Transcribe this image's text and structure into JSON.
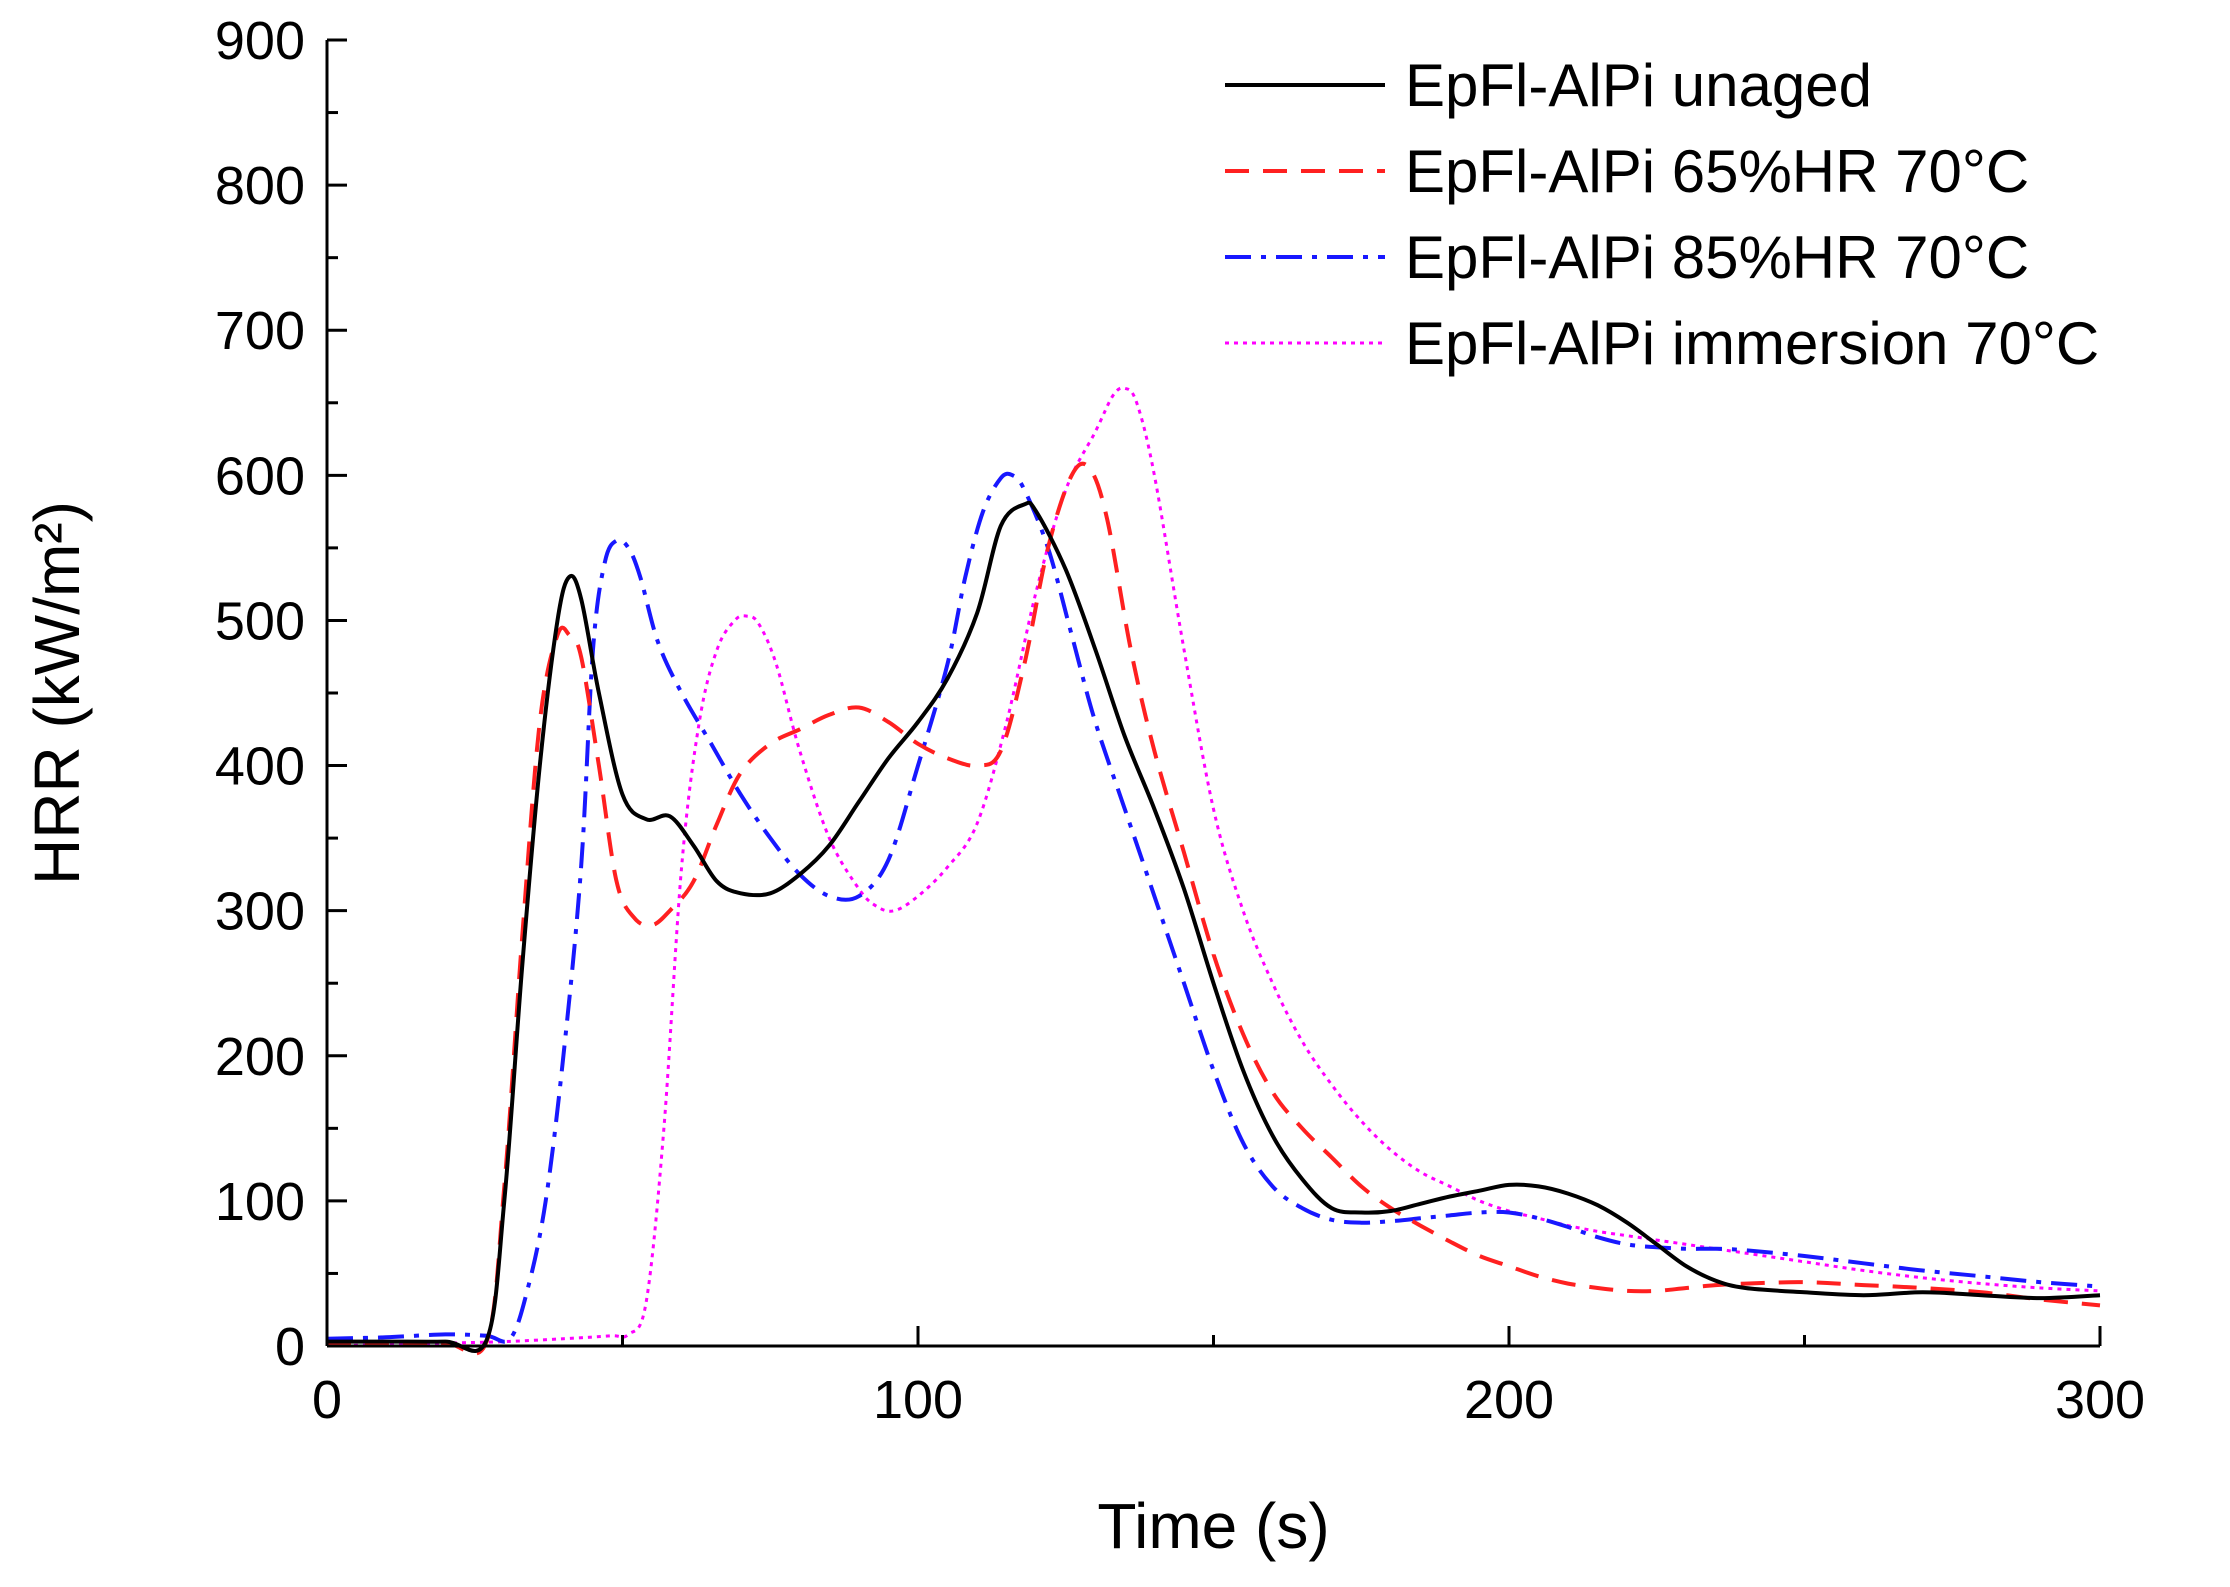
{
  "chart_data": {
    "type": "line",
    "title": "",
    "xlabel": "Time (s)",
    "ylabel": "HRR (kW/m²)",
    "xlim": [
      0,
      300
    ],
    "ylim": [
      0,
      900
    ],
    "x_ticks": [
      0,
      100,
      200,
      300
    ],
    "x_tick_labels": [
      "0",
      "100",
      "200",
      "300"
    ],
    "y_ticks": [
      0,
      100,
      200,
      300,
      400,
      500,
      600,
      700,
      800,
      900
    ],
    "y_tick_labels": [
      "0",
      "100",
      "200",
      "300",
      "400",
      "500",
      "600",
      "700",
      "800",
      "900"
    ],
    "grid": false,
    "legend_position": "top-right",
    "series": [
      {
        "name": "EpFl-AlPi unaged",
        "color": "#000000",
        "style": "solid",
        "x": [
          0,
          10,
          20,
          27,
          30,
          33,
          36,
          39,
          41,
          43,
          46,
          50,
          54,
          58,
          62,
          66,
          70,
          75,
          80,
          85,
          90,
          95,
          100,
          105,
          110,
          114,
          118,
          120,
          125,
          130,
          135,
          140,
          145,
          150,
          155,
          160,
          165,
          170,
          175,
          180,
          185,
          190,
          195,
          200,
          205,
          210,
          215,
          220,
          225,
          230,
          235,
          240,
          250,
          260,
          270,
          280,
          290,
          300
        ],
        "y": [
          3,
          3,
          3,
          4,
          100,
          260,
          400,
          500,
          530,
          515,
          450,
          380,
          363,
          365,
          345,
          320,
          312,
          312,
          325,
          345,
          375,
          405,
          430,
          460,
          505,
          565,
          580,
          575,
          535,
          480,
          420,
          370,
          315,
          250,
          190,
          145,
          115,
          95,
          92,
          93,
          98,
          103,
          107,
          111,
          110,
          105,
          97,
          85,
          70,
          55,
          45,
          40,
          37,
          35,
          37,
          35,
          33,
          35
        ]
      },
      {
        "name": "EpFl-AlPi 65%HR 70°C",
        "color": "#ff2020",
        "style": "dashed",
        "x": [
          0,
          10,
          20,
          27,
          30,
          33,
          36,
          39,
          41,
          43,
          46,
          49,
          52,
          55,
          58,
          62,
          66,
          70,
          75,
          80,
          85,
          90,
          95,
          100,
          105,
          110,
          114,
          118,
          122,
          126,
          129,
          132,
          136,
          140,
          145,
          150,
          155,
          160,
          165,
          170,
          175,
          180,
          185,
          190,
          195,
          200,
          205,
          210,
          215,
          220,
          225,
          230,
          235,
          240,
          250,
          260,
          270,
          280,
          290,
          300
        ],
        "y": [
          2,
          2,
          2,
          3,
          110,
          280,
          430,
          490,
          490,
          475,
          400,
          320,
          295,
          290,
          300,
          320,
          360,
          395,
          415,
          425,
          435,
          440,
          430,
          415,
          405,
          400,
          410,
          470,
          550,
          600,
          605,
          570,
          480,
          410,
          340,
          270,
          215,
          175,
          150,
          130,
          110,
          95,
          83,
          72,
          62,
          55,
          48,
          43,
          40,
          38,
          38,
          40,
          42,
          43,
          44,
          42,
          40,
          37,
          32,
          28
        ]
      },
      {
        "name": "EpFl-AlPi 85%HR 70°C",
        "color": "#1818ff",
        "style": "dashdot",
        "x": [
          0,
          10,
          20,
          27,
          31,
          34,
          37,
          40,
          43,
          45,
          47,
          49,
          51,
          53,
          56,
          60,
          65,
          70,
          75,
          80,
          85,
          90,
          95,
          100,
          105,
          108,
          111,
          114,
          116,
          118,
          122,
          126,
          130,
          135,
          140,
          145,
          150,
          155,
          160,
          165,
          170,
          175,
          180,
          185,
          190,
          195,
          200,
          205,
          210,
          215,
          220,
          225,
          230,
          235,
          240,
          250,
          260,
          270,
          280,
          290,
          300
        ],
        "y": [
          5,
          6,
          8,
          7,
          5,
          40,
          100,
          200,
          330,
          480,
          540,
          555,
          550,
          530,
          485,
          450,
          415,
          380,
          350,
          325,
          310,
          310,
          335,
          400,
          470,
          530,
          575,
          598,
          600,
          590,
          550,
          490,
          430,
          370,
          310,
          250,
          190,
          140,
          110,
          95,
          87,
          85,
          86,
          88,
          90,
          92,
          92,
          88,
          82,
          75,
          70,
          68,
          67,
          67,
          66,
          62,
          57,
          52,
          48,
          44,
          41
        ]
      },
      {
        "name": "EpFl-AlPi immersion 70°C",
        "color": "#ff00ff",
        "style": "dotted",
        "x": [
          0,
          10,
          20,
          30,
          40,
          48,
          51,
          54,
          57,
          60,
          63,
          66,
          69,
          71,
          73,
          76,
          80,
          85,
          90,
          93,
          96,
          100,
          105,
          110,
          115,
          120,
          125,
          130,
          133,
          135,
          137,
          140,
          145,
          150,
          155,
          160,
          165,
          170,
          175,
          180,
          185,
          190,
          195,
          200,
          205,
          210,
          215,
          220,
          225,
          230,
          240,
          250,
          260,
          270,
          280,
          290,
          300
        ],
        "y": [
          0,
          1,
          2,
          3,
          5,
          7,
          8,
          30,
          150,
          330,
          430,
          480,
          500,
          503,
          498,
          470,
          410,
          350,
          315,
          303,
          300,
          310,
          330,
          360,
          430,
          520,
          590,
          630,
          655,
          660,
          650,
          600,
          480,
          370,
          300,
          250,
          210,
          180,
          155,
          135,
          120,
          110,
          100,
          93,
          88,
          83,
          79,
          76,
          73,
          70,
          64,
          58,
          52,
          47,
          43,
          40,
          38
        ]
      }
    ]
  }
}
